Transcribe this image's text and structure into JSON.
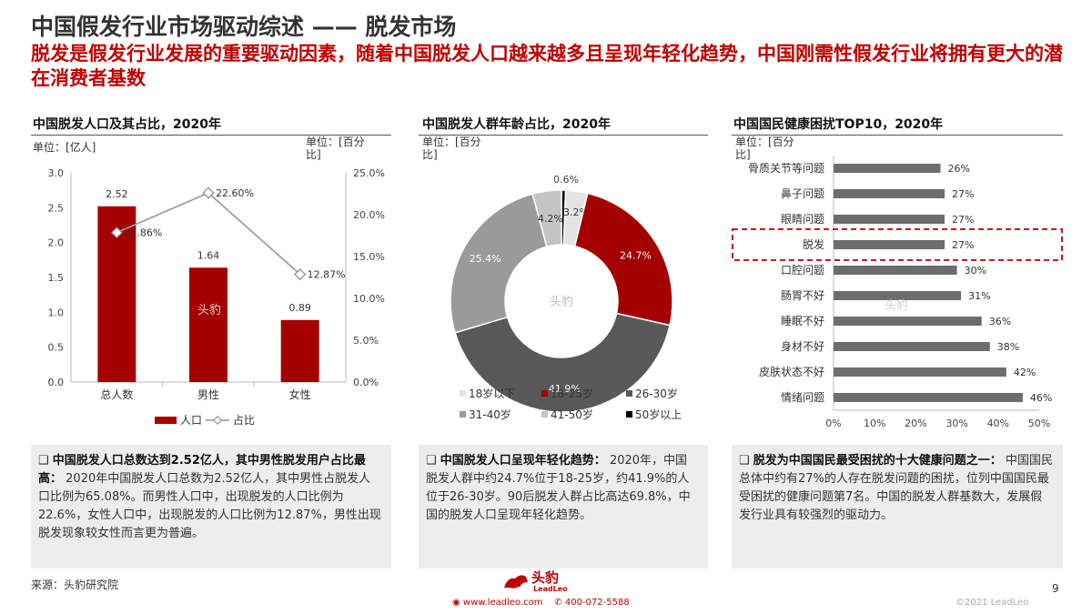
{
  "header": {
    "title": "中国假发行业市场驱动综述 —— 脱发市场",
    "subtitle": "脱发是假发行业发展的重要驱动因素，随着中国脱发人口越来越多且呈现年轻化趋势，中国刚需性假发行业将拥有更大的潜在消费者基数"
  },
  "chart_data": [
    {
      "type": "bar",
      "title": "中国脱发人口及其占比，2020年",
      "unit_left": "单位：[亿人]",
      "unit_right": "单位：[百分比]",
      "categories": [
        "总人数",
        "男性",
        "女性"
      ],
      "series": [
        {
          "name": "人口",
          "values": [
            2.52,
            1.64,
            0.89
          ],
          "labels": [
            "2.52",
            "1.64",
            "0.89"
          ],
          "color": "#a50000"
        },
        {
          "name": "占比",
          "type": "line",
          "values": [
            17.86,
            22.6,
            12.87
          ],
          "labels": [
            "17.86%",
            "22.60%",
            "12.87%"
          ],
          "color": "#a0a0a0"
        }
      ],
      "yticks": [
        "0.0",
        "0.5",
        "1.0",
        "1.5",
        "2.0",
        "2.5",
        "3.0"
      ],
      "ylim": [
        0,
        3.0
      ],
      "y2ticks": [
        "0.0%",
        "5.0%",
        "10.0%",
        "15.0%",
        "20.0%",
        "25.0%"
      ],
      "y2lim": [
        0,
        25
      ],
      "watermark": "头豹"
    },
    {
      "type": "pie",
      "title": "中国脱发人群年龄占比，2020年",
      "unit": "单位：[百分比]",
      "slices": [
        {
          "name": "18岁以下",
          "value": 3.2,
          "label": "3.2%",
          "color": "#e4e4e4"
        },
        {
          "name": "18-25岁",
          "value": 24.7,
          "label": "24.7%",
          "color": "#a50000"
        },
        {
          "name": "26-30岁",
          "value": 41.9,
          "label": "41.9%",
          "color": "#595959"
        },
        {
          "name": "31-40岁",
          "value": 25.4,
          "label": "25.4%",
          "color": "#9a9a9a"
        },
        {
          "name": "41-50岁",
          "value": 4.2,
          "label": "4.2%",
          "color": "#c4c4c4"
        },
        {
          "name": "50岁以上",
          "value": 0.6,
          "label": "0.6%",
          "color": "#000000"
        }
      ],
      "watermark": "头豹"
    },
    {
      "type": "bar",
      "orientation": "horizontal",
      "title": "中国国民健康困扰TOP10，2020年",
      "unit": "单位：[百分比]",
      "categories": [
        "骨质关节等问题",
        "鼻子问题",
        "眼睛问题",
        "脱发",
        "口腔问题",
        "肠胃不好",
        "睡眠不好",
        "身材不好",
        "皮肤状态不好",
        "情绪问题"
      ],
      "values": [
        26,
        27,
        27,
        27,
        30,
        31,
        36,
        38,
        42,
        46
      ],
      "labels": [
        "26%",
        "27%",
        "27%",
        "27%",
        "30%",
        "31%",
        "36%",
        "38%",
        "42%",
        "46%"
      ],
      "highlight": "脱发",
      "xticks": [
        "0%",
        "10%",
        "20%",
        "30%",
        "40%",
        "50%"
      ],
      "xlim": [
        0,
        50
      ],
      "color": "#6d6d6d",
      "watermark": "头豹"
    }
  ],
  "boxes": [
    {
      "bold": "中国脱发人口总数达到2.52亿人，其中男性脱发用户占比最高：",
      "text": "2020年中国脱发人口总数为2.52亿人，其中男性占脱发人口比例为65.08%。而男性人口中，出现脱发的人口比例为22.6%，女性人口中，出现脱发的人口比例为12.87%，男性出现脱发现象较女性而言更为普遍。"
    },
    {
      "bold": "中国脱发人口呈现年轻化趋势：",
      "text": "2020年，中国脱发人群中约24.7%位于18-25岁，约41.9%的人位于26-30岁。90后脱发人群占比高达69.8%，中国的脱发人口呈现年轻化趋势。"
    },
    {
      "bold": "脱发为中国国民最受困扰的十大健康问题之一：",
      "text": "中国国民总体中约有27%的人存在脱发问题的困扰，位列中国国民最受困扰的健康问题第7名。中国的脱发人群基数大，发展假发行业具有较强烈的驱动力。"
    }
  ],
  "footer": {
    "source": "来源：头豹研究院",
    "logo_text": "头豹",
    "logo_sub": "LeadLeo",
    "website": "www.leadleo.com",
    "phone": "400-072-5588",
    "page": "9",
    "copyright": "©2021 LeadLeo"
  }
}
